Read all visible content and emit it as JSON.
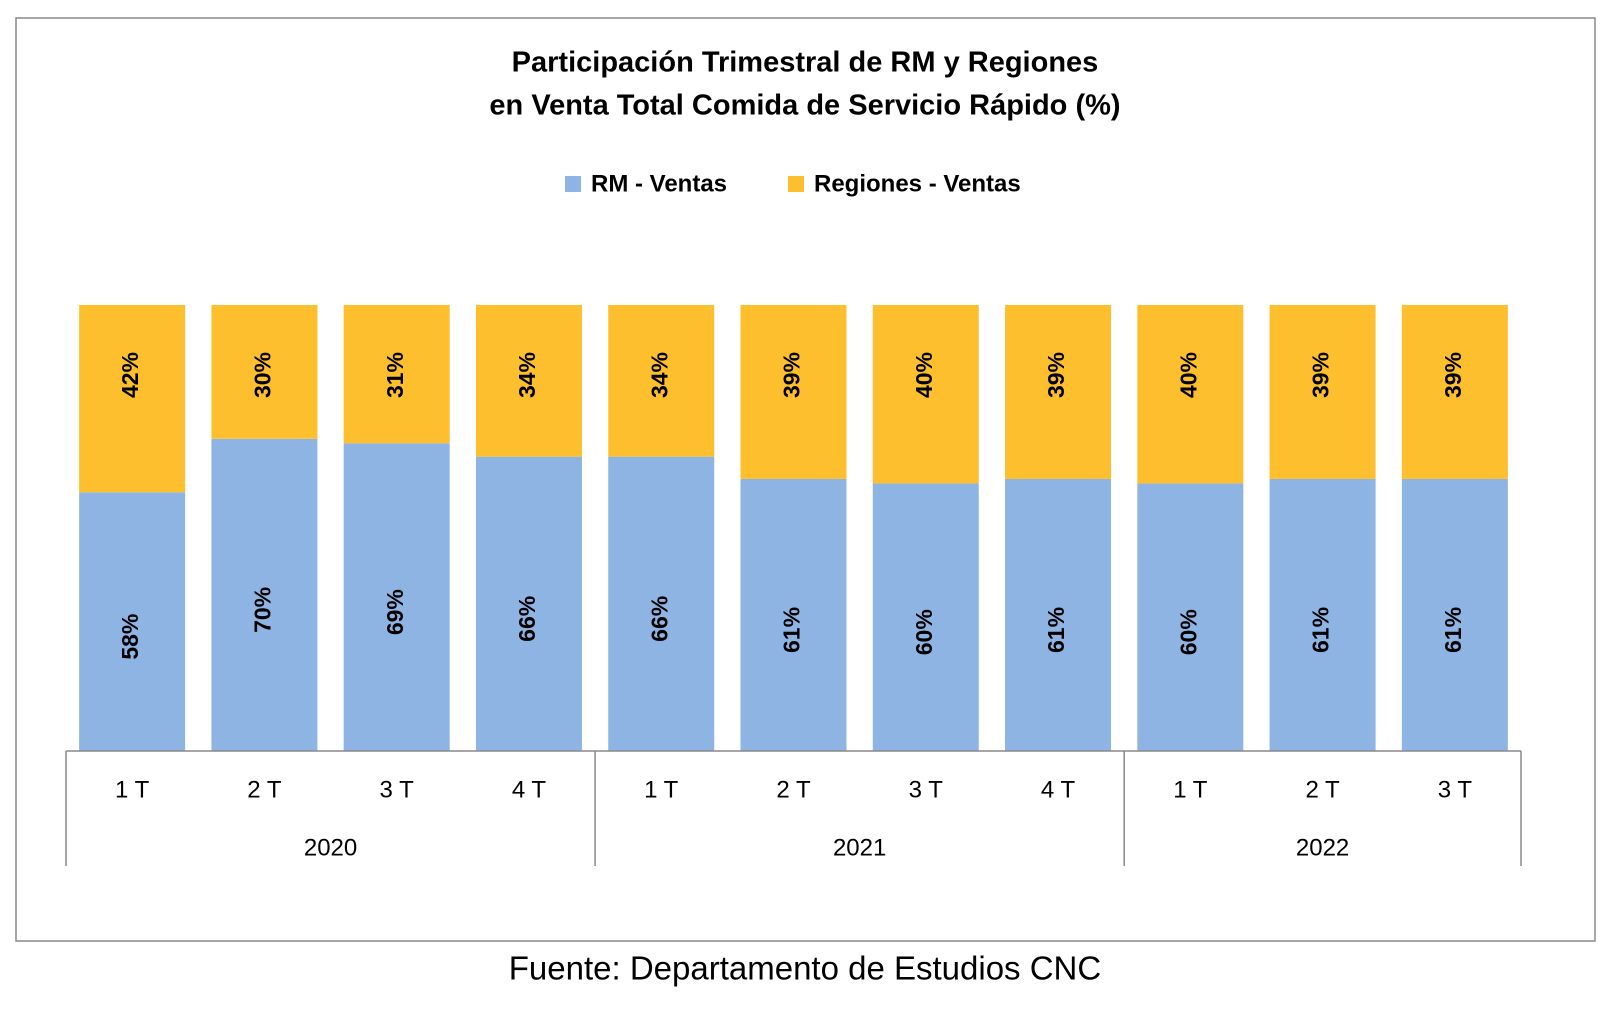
{
  "chart_data": {
    "type": "stacked_bar",
    "title": [
      "Participación Trimestral de RM y Regiones",
      "en Venta Total Comida de Servicio Rápido (%)"
    ],
    "categories": [
      "1 T",
      "2 T",
      "3 T",
      "4 T",
      "1 T",
      "2 T",
      "3 T",
      "4 T",
      "1 T",
      "2 T",
      "3 T"
    ],
    "groups": [
      {
        "label": "2020",
        "size": 4
      },
      {
        "label": "2021",
        "size": 4
      },
      {
        "label": "2022",
        "size": 3
      }
    ],
    "series": [
      {
        "name": "RM - Ventas",
        "color": "#8eb4e3",
        "values": [
          58,
          70,
          69,
          66,
          66,
          61,
          60,
          61,
          60,
          61,
          61
        ],
        "value_labels": [
          "58%",
          "70%",
          "69%",
          "66%",
          "66%",
          "61%",
          "60%",
          "61%",
          "60%",
          "61%",
          "61%"
        ]
      },
      {
        "name": "Regiones - Ventas",
        "color": "#fdbf2d",
        "values": [
          42,
          30,
          31,
          34,
          34,
          39,
          40,
          39,
          40,
          39,
          39
        ],
        "value_labels": [
          "42%",
          "30%",
          "31%",
          "34%",
          "34%",
          "39%",
          "40%",
          "39%",
          "40%",
          "39%",
          "39%"
        ]
      }
    ],
    "ylim": [
      0,
      100
    ],
    "legend": "top",
    "note": "Fuente: Departamento de Estudios CNC"
  }
}
